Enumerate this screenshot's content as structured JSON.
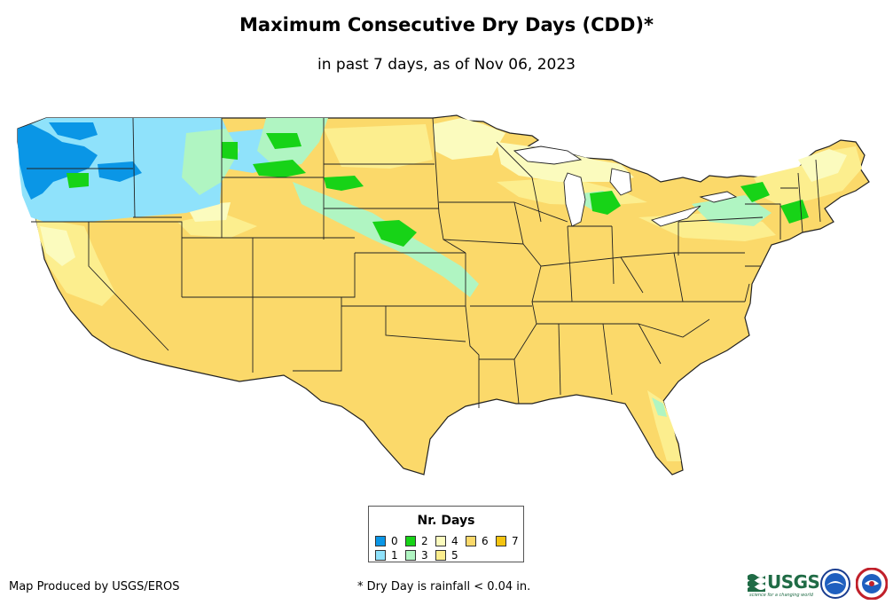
{
  "header": {
    "title": "Maximum Consecutive Dry Days (CDD)*",
    "subtitle": "in past 7 days, as of Nov 06, 2023"
  },
  "legend": {
    "title": "Nr. Days",
    "items": [
      {
        "label": "0",
        "color": "#0a96e6"
      },
      {
        "label": "1",
        "color": "#8fe2fb"
      },
      {
        "label": "2",
        "color": "#17d317"
      },
      {
        "label": "3",
        "color": "#b0f5c2"
      },
      {
        "label": "4",
        "color": "#fbfbbe"
      },
      {
        "label": "5",
        "color": "#fcee8e"
      },
      {
        "label": "6",
        "color": "#fbd96a"
      },
      {
        "label": "7",
        "color": "#f4c410"
      }
    ]
  },
  "footer": {
    "credit": "Map Produced by USGS/EROS",
    "footnote": "* Dry Day is rainfall < 0.04 in.",
    "usgs_logo_text": "USGS",
    "usgs_tagline": "science for a changing world"
  },
  "icons": {
    "usgs_logo": "usgs-logo-icon",
    "noaa_logo": "noaa-logo-icon",
    "nws_logo": "nws-logo-icon"
  }
}
